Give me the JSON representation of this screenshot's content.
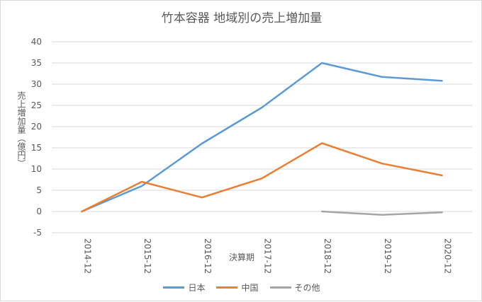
{
  "chart_data": {
    "type": "line",
    "title": "竹本容器 地域別の売上増加量",
    "xlabel": "決算期",
    "ylabel": "売上増加量（億円）",
    "categories": [
      "2014-12",
      "2015-12",
      "2016-12",
      "2017-12",
      "2018-12",
      "2019-12",
      "2020-12"
    ],
    "ylim": [
      -5,
      40
    ],
    "yticks": [
      -5,
      0,
      5,
      10,
      15,
      20,
      25,
      30,
      35,
      40
    ],
    "grid": true,
    "legend_position": "bottom",
    "series": [
      {
        "name": "日本",
        "color": "#5b9bd5",
        "values": [
          0,
          6,
          16,
          24.5,
          35,
          31.7,
          30.8
        ]
      },
      {
        "name": "中国",
        "color": "#ed7d31",
        "values": [
          0,
          7,
          3.3,
          7.8,
          16.1,
          11.3,
          8.5
        ]
      },
      {
        "name": "その他",
        "color": "#a5a5a5",
        "values": [
          null,
          null,
          null,
          null,
          0,
          -0.8,
          -0.2
        ]
      }
    ]
  }
}
